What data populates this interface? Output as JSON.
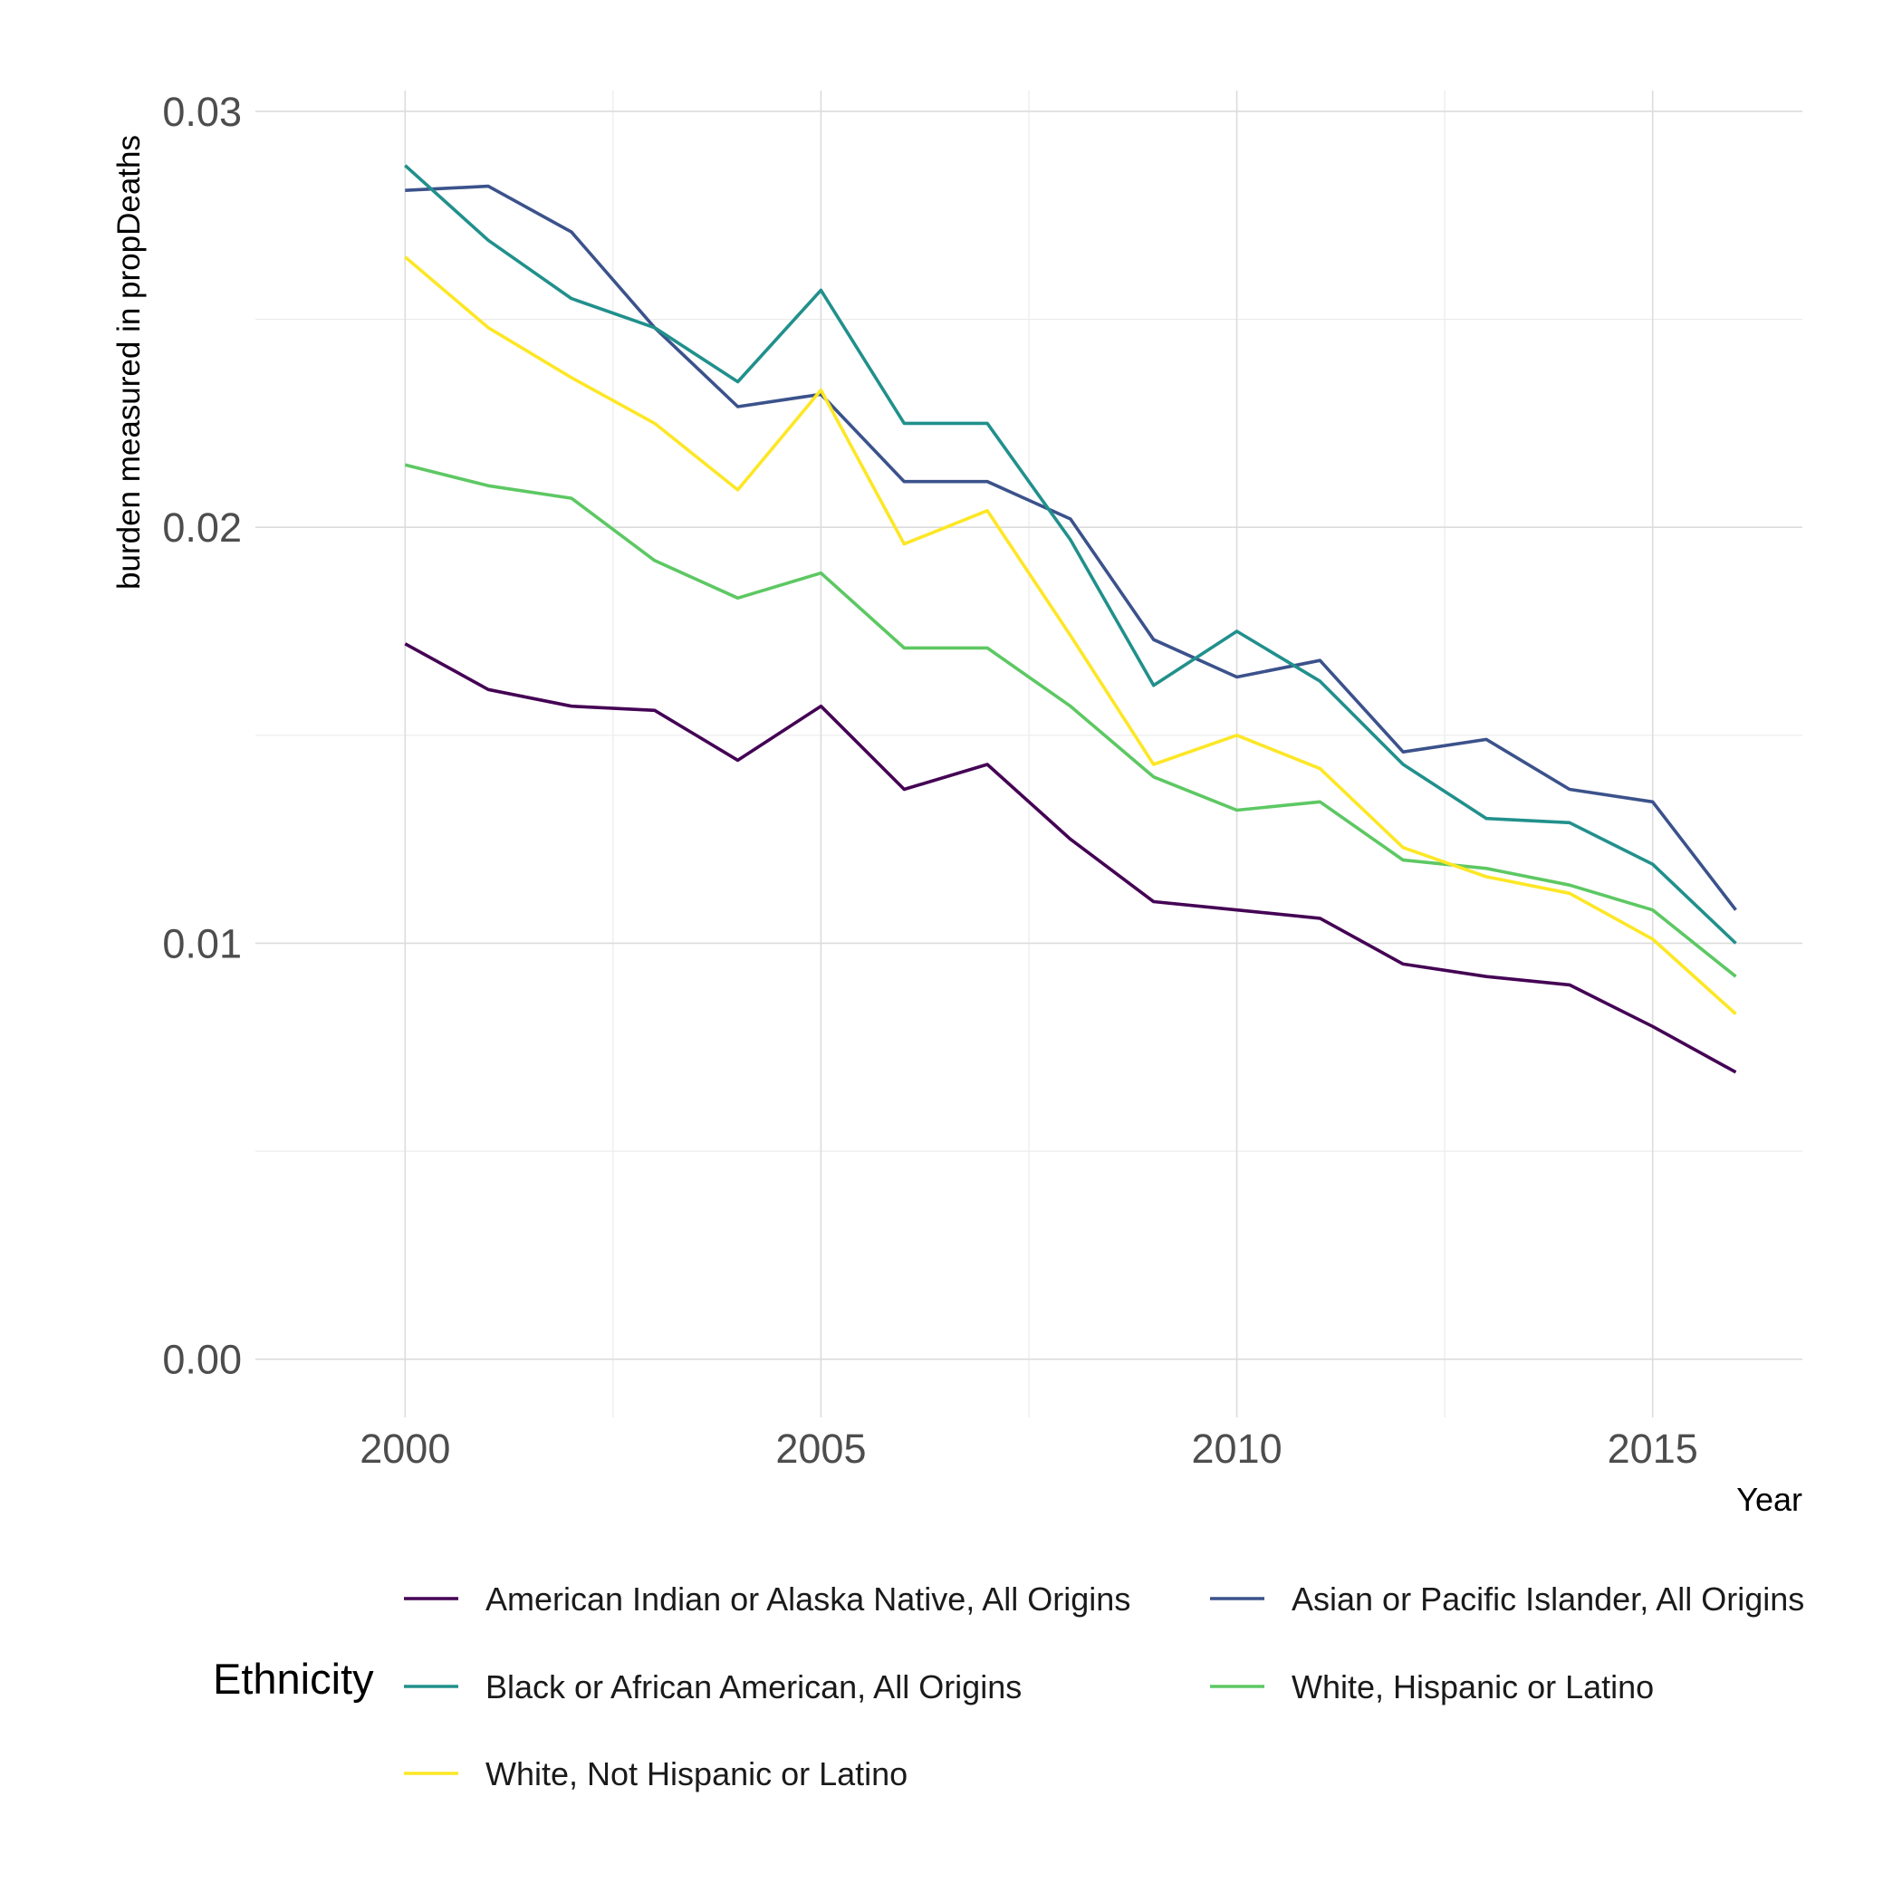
{
  "chart_data": {
    "type": "line",
    "xlabel": "Year",
    "ylabel": "burden measured in propDeaths",
    "xlim": [
      1998.2,
      2016.8
    ],
    "ylim": [
      -0.0014,
      0.0305
    ],
    "x_ticks": [
      2000,
      2005,
      2010,
      2015
    ],
    "x_tick_labels": [
      "2000",
      "2005",
      "2010",
      "2015"
    ],
    "y_ticks": [
      0,
      0.01,
      0.02,
      0.03
    ],
    "y_tick_labels": [
      "0.00",
      "0.01",
      "0.02",
      "0.03"
    ],
    "x_minor_ticks": [
      2002.5,
      2007.5,
      2012.5
    ],
    "y_minor_ticks": [
      0.005,
      0.015,
      0.025
    ],
    "grid": true,
    "legend_position": "bottom",
    "legend_title": "Ethnicity",
    "x": [
      2000,
      2001,
      2002,
      2003,
      2004,
      2005,
      2006,
      2007,
      2008,
      2009,
      2010,
      2011,
      2012,
      2013,
      2014,
      2015,
      2016
    ],
    "series": [
      {
        "name": "American Indian or Alaska Native, All Origins",
        "color": "#440154",
        "values": [
          0.0172,
          0.0161,
          0.0157,
          0.0156,
          0.0144,
          0.0157,
          0.0137,
          0.0143,
          0.0125,
          0.011,
          0.0108,
          0.0106,
          0.0095,
          0.0092,
          0.009,
          0.008,
          0.0069
        ]
      },
      {
        "name": "Asian or Pacific Islander, All Origins",
        "color": "#3B528B",
        "values": [
          0.0281,
          0.0282,
          0.0271,
          0.0248,
          0.0229,
          0.0232,
          0.0211,
          0.0211,
          0.0202,
          0.0173,
          0.0164,
          0.0168,
          0.0146,
          0.0149,
          0.0137,
          0.0134,
          0.0108
        ]
      },
      {
        "name": "Black or African American, All Origins",
        "color": "#21908C",
        "values": [
          0.0287,
          0.0269,
          0.0255,
          0.0248,
          0.0235,
          0.0257,
          0.0225,
          0.0225,
          0.0197,
          0.0162,
          0.0175,
          0.0163,
          0.0143,
          0.013,
          0.0129,
          0.0119,
          0.01
        ]
      },
      {
        "name": "White, Hispanic or Latino",
        "color": "#5DC863",
        "values": [
          0.0215,
          0.021,
          0.0207,
          0.0192,
          0.0183,
          0.0189,
          0.0171,
          0.0171,
          0.0157,
          0.014,
          0.0132,
          0.0134,
          0.012,
          0.0118,
          0.0114,
          0.0108,
          0.0092
        ]
      },
      {
        "name": "White, Not Hispanic or Latino",
        "color": "#FDE725",
        "values": [
          0.0265,
          0.0248,
          0.0236,
          0.0225,
          0.0209,
          0.0233,
          0.0196,
          0.0204,
          0.0174,
          0.0143,
          0.015,
          0.0142,
          0.0123,
          0.0116,
          0.0112,
          0.0101,
          0.0083
        ]
      }
    ]
  }
}
